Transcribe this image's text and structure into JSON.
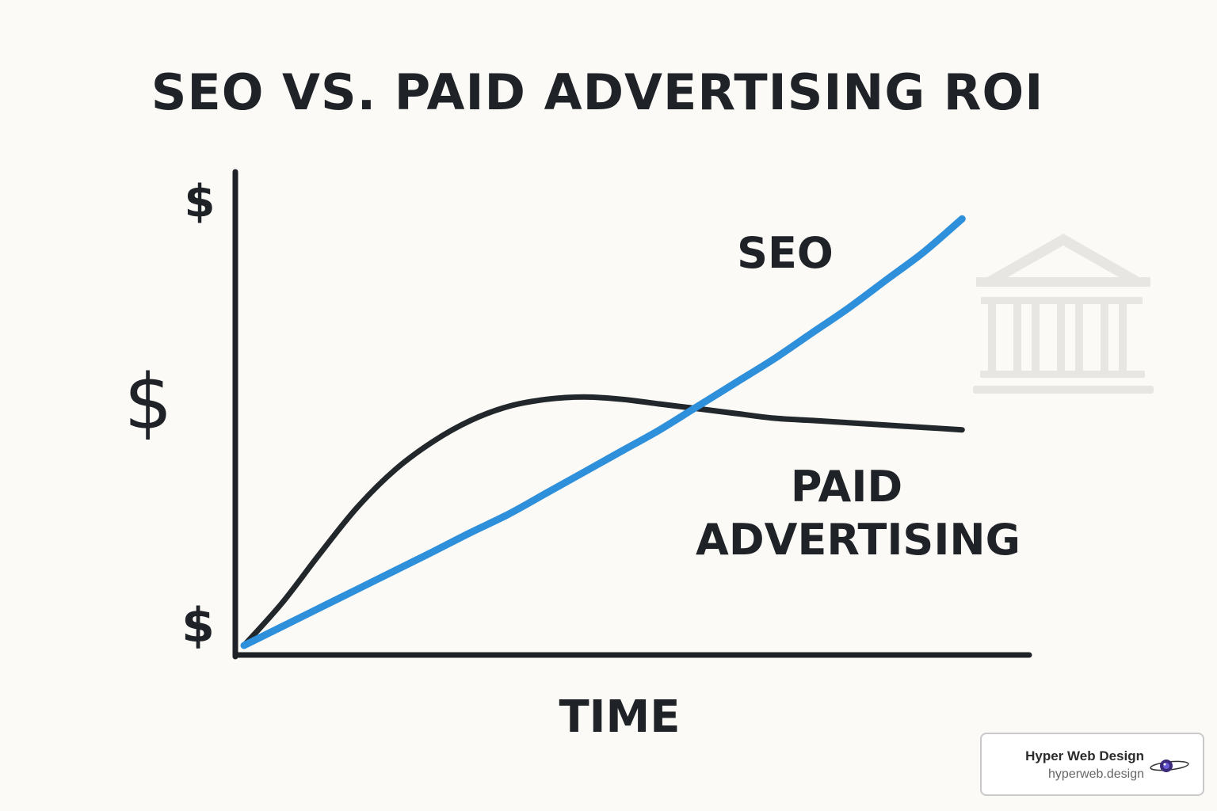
{
  "chart_data": {
    "type": "line",
    "title": "SEO VS. PAID ADVERTISING ROI",
    "xlabel": "TIME",
    "ylabel": "",
    "y_tick_labels": [
      "$",
      "$",
      "$"
    ],
    "xlim": [
      0,
      10
    ],
    "ylim": [
      0,
      10
    ],
    "x": [
      0,
      0.5,
      1,
      1.5,
      2,
      2.5,
      3,
      3.5,
      4,
      4.5,
      5,
      5.5,
      6,
      6.5,
      7,
      7.5,
      8,
      8.5,
      9,
      9.5
    ],
    "series": [
      {
        "name": "SEO",
        "color": "#2e8fdb",
        "values": [
          0,
          0.4,
          0.8,
          1.2,
          1.6,
          2.0,
          2.41,
          2.8,
          3.25,
          3.7,
          4.15,
          4.6,
          5.1,
          5.6,
          6.1,
          6.65,
          7.2,
          7.8,
          8.4,
          9.1
        ]
      },
      {
        "name": "PAID ADVERTISING",
        "color": "#22272b",
        "values": [
          0,
          0.9,
          1.95,
          2.95,
          3.75,
          4.35,
          4.8,
          5.1,
          5.25,
          5.3,
          5.25,
          5.15,
          5.05,
          4.95,
          4.85,
          4.8,
          4.75,
          4.7,
          4.65,
          4.6
        ]
      }
    ],
    "axes": {
      "x_axis_color": "#1f2226",
      "y_axis_color": "#1f2226"
    },
    "grid": false,
    "legend": "labels placed on chart"
  },
  "decoration": {
    "background_icon": "bank-building-icon",
    "icon_color": "#e6e4e0"
  },
  "brand": {
    "name": "Hyper Web Design",
    "url": "hyperweb.design",
    "logo_icon": "eye-orbit-logo-icon"
  }
}
